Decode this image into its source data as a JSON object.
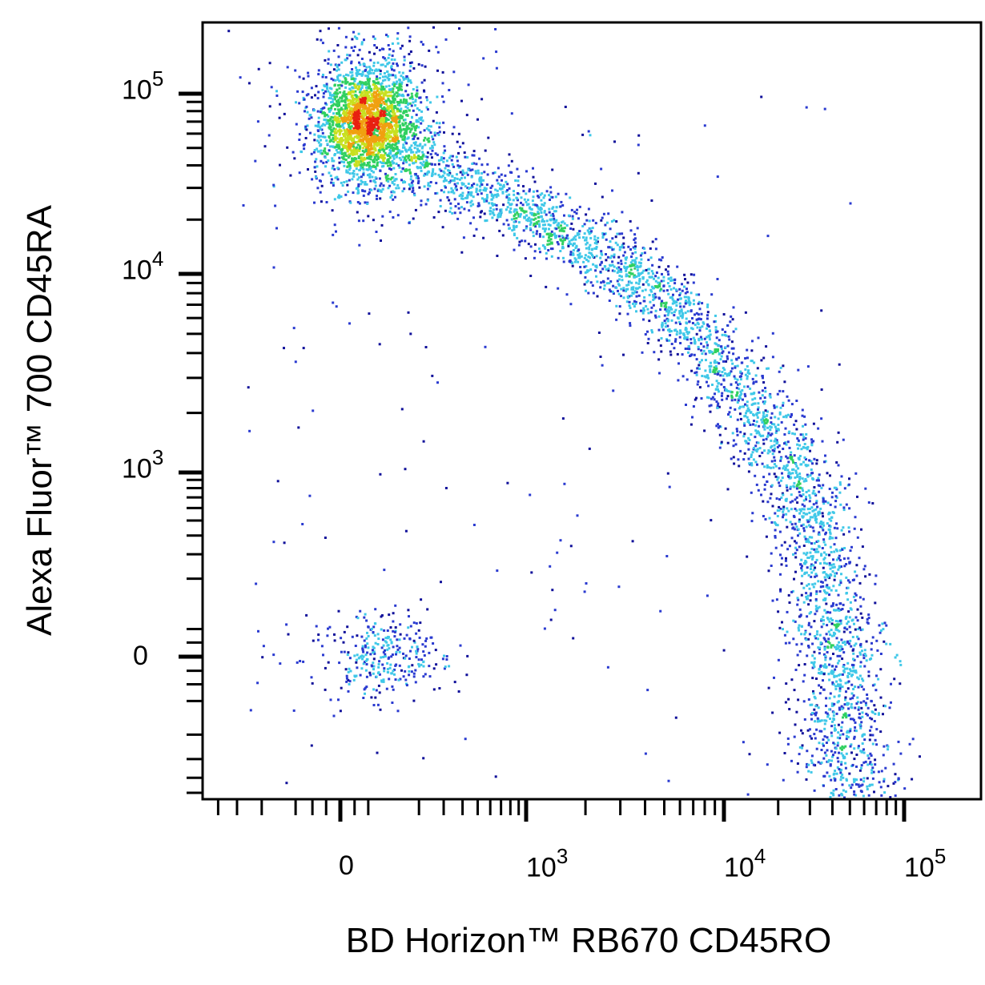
{
  "chart_data": {
    "type": "scatter",
    "subtype": "flow-cytometry density dot plot (pseudocolor)",
    "xlabel": "BD Horizon™ RB670 CD45RO",
    "ylabel": "Alexa Fluor™ 700 CD45RA",
    "x_scale": "biexponential",
    "y_scale": "biexponential",
    "x_ticks": [
      {
        "value": 0,
        "base": "0",
        "exp": ""
      },
      {
        "value": 1000,
        "base": "10",
        "exp": "3"
      },
      {
        "value": 10000,
        "base": "10",
        "exp": "4"
      },
      {
        "value": 100000,
        "base": "10",
        "exp": "5"
      }
    ],
    "y_ticks": [
      {
        "value": 0,
        "base": "0",
        "exp": ""
      },
      {
        "value": 1000,
        "base": "10",
        "exp": "3"
      },
      {
        "value": 10000,
        "base": "10",
        "exp": "4"
      },
      {
        "value": 100000,
        "base": "10",
        "exp": "5"
      }
    ],
    "xlim": [
      -1500,
      250000
    ],
    "ylim": [
      -1500,
      250000
    ],
    "grid": false,
    "legend": "none",
    "colormap": [
      "#10109a",
      "#2a3ad0",
      "#3fc8e8",
      "#30d060",
      "#c8e020",
      "#f0a010",
      "#e82010"
    ],
    "populations": [
      {
        "center": [
          60,
          70000
        ],
        "events": 2600
      },
      {
        "center": [
          90,
          0
        ],
        "events": 320
      }
    ],
    "trajectory": {
      "path": [
        [
          150,
          45000
        ],
        [
          600,
          28000
        ],
        [
          1500,
          18000
        ],
        [
          4000,
          9000
        ],
        [
          9000,
          4000
        ],
        [
          15000,
          2000
        ],
        [
          25000,
          900
        ],
        [
          35000,
          300
        ],
        [
          42000,
          0
        ],
        [
          48000,
          -400
        ],
        [
          52000,
          -1200
        ]
      ],
      "events": 3600
    },
    "background_events": 160
  }
}
